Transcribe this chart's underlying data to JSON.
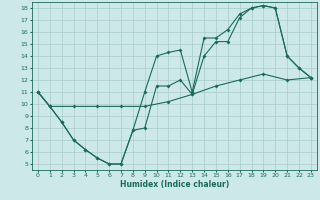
{
  "background_color": "#cce8e8",
  "grid_color": "#aacccc",
  "line_color": "#1a6b5a",
  "xlabel": "Humidex (Indice chaleur)",
  "xlim": [
    -0.5,
    23.5
  ],
  "ylim": [
    4.5,
    18.5
  ],
  "xticks": [
    0,
    1,
    2,
    3,
    4,
    5,
    6,
    7,
    8,
    9,
    10,
    11,
    12,
    13,
    14,
    15,
    16,
    17,
    18,
    19,
    20,
    21,
    22,
    23
  ],
  "yticks": [
    5,
    6,
    7,
    8,
    9,
    10,
    11,
    12,
    13,
    14,
    15,
    16,
    17,
    18
  ],
  "line1_x": [
    0,
    1,
    2,
    3,
    4,
    5,
    6,
    7,
    8,
    9,
    10,
    11,
    12,
    13,
    14,
    15,
    16,
    17,
    18,
    19,
    20,
    21,
    22,
    23
  ],
  "line1_y": [
    11.0,
    9.8,
    8.5,
    7.0,
    6.2,
    5.5,
    5.0,
    5.0,
    7.8,
    11.0,
    14.0,
    14.3,
    14.5,
    11.0,
    15.5,
    15.5,
    16.2,
    17.5,
    18.0,
    18.2,
    18.0,
    14.0,
    13.0,
    12.2
  ],
  "line2_x": [
    0,
    1,
    2,
    3,
    4,
    5,
    6,
    7,
    8,
    9,
    10,
    11,
    12,
    13,
    14,
    15,
    16,
    17,
    18,
    19,
    20,
    21,
    22,
    23
  ],
  "line2_y": [
    11.0,
    9.8,
    8.5,
    7.0,
    6.2,
    5.5,
    5.0,
    5.0,
    7.8,
    8.0,
    11.5,
    11.5,
    12.0,
    10.8,
    14.0,
    15.2,
    15.2,
    17.2,
    18.0,
    18.2,
    18.0,
    14.0,
    13.0,
    12.2
  ],
  "line3_x": [
    0,
    1,
    3,
    5,
    7,
    9,
    11,
    13,
    15,
    17,
    19,
    21,
    23
  ],
  "line3_y": [
    11.0,
    9.8,
    9.8,
    9.8,
    9.8,
    9.8,
    10.2,
    10.8,
    11.5,
    12.0,
    12.5,
    12.0,
    12.2
  ]
}
